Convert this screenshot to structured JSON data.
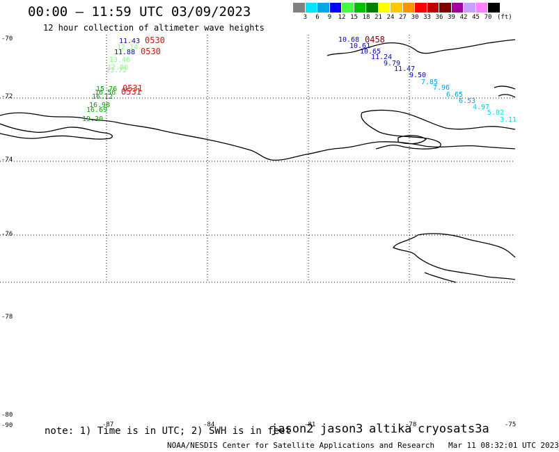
{
  "header": {
    "title": "00:00 — 11:59 UTC 03/09/2023",
    "subtitle": "12 hour collection of altimeter wave heights"
  },
  "legend": {
    "unit": "(ft)",
    "labels": [
      "3",
      "6",
      "9",
      "12",
      "15",
      "18",
      "21",
      "24",
      "27",
      "30",
      "33",
      "36",
      "39",
      "42",
      "45",
      "70"
    ],
    "colors": [
      "#808080",
      "#00e5ff",
      "#00a8e8",
      "#0000ff",
      "#40ff40",
      "#00c000",
      "#008000",
      "#ffff00",
      "#ffc800",
      "#ff9000",
      "#ff0000",
      "#c00000",
      "#800000",
      "#a000a0",
      "#c8a0ff",
      "#ff80ff",
      "#000000"
    ]
  },
  "axes": {
    "lat_labels": [
      "-70",
      "-72",
      "-74",
      "-76",
      "-78",
      "-80",
      "-90"
    ],
    "lon_labels": [
      "-87",
      "-84",
      "-81",
      "-78",
      "-75"
    ]
  },
  "observations": {
    "track_west": [
      {
        "text": "11.43",
        "color": "#0000c0"
      },
      {
        "text": "12.14",
        "color": "#80ff80"
      },
      {
        "text": "11.88",
        "color": "#0000c0"
      },
      {
        "text": "13.46",
        "color": "#80ff80"
      },
      {
        "text": "12.80",
        "color": "#80ff80"
      },
      {
        "text": "13.72",
        "color": "#80ff80"
      },
      {
        "text": "15.76",
        "color": "#00a000"
      },
      {
        "text": "16.56",
        "color": "#00a000"
      },
      {
        "text": "16.12",
        "color": "#00a000"
      },
      {
        "text": "16.98",
        "color": "#00a000"
      },
      {
        "text": "16.69",
        "color": "#00a000"
      },
      {
        "text": "19.30",
        "color": "#00a000"
      }
    ],
    "track_east": [
      {
        "text": "10.68",
        "color": "#0000c0"
      },
      {
        "text": "10.61",
        "color": "#0000c0"
      },
      {
        "text": "10.65",
        "color": "#0000c0"
      },
      {
        "text": "11.24",
        "color": "#0000c0"
      },
      {
        "text": "9.79",
        "color": "#0000c0"
      },
      {
        "text": "11.47",
        "color": "#0000c0"
      },
      {
        "text": "9.50",
        "color": "#0000c0"
      },
      {
        "text": "7.85",
        "color": "#00a0e0"
      },
      {
        "text": "7.96",
        "color": "#00a0e0"
      },
      {
        "text": "6.65",
        "color": "#00a0e0"
      },
      {
        "text": "6.53",
        "color": "#00a0e0"
      },
      {
        "text": "4.97",
        "color": "#00c8e8"
      },
      {
        "text": "5.82",
        "color": "#00e0f0"
      },
      {
        "text": "3.11",
        "color": "#00e0f0"
      }
    ],
    "times": [
      {
        "text": "0530",
        "color": "#ff0000"
      },
      {
        "text": "0530",
        "color": "#ff0000"
      },
      {
        "text": "0531",
        "color": "#ff0000"
      },
      {
        "text": "0531",
        "color": "#ff0000"
      },
      {
        "text": "0458",
        "color": "#800000"
      }
    ]
  },
  "footer": {
    "note": "note: 1) Time is in UTC; 2) SWH is in feet",
    "satellites": [
      {
        "name": "jason2",
        "color": "#0000e0"
      },
      {
        "name": "jason3",
        "color": "#00a000"
      },
      {
        "name": "altika",
        "color": "#ff9000"
      },
      {
        "name": "cryosat",
        "color": "#c00000"
      },
      {
        "name": "s3a",
        "color": "#800000"
      }
    ],
    "credit": "NOAA/NESDIS Center for Satellite Applications and Research",
    "timestamp": "Mar 11 08:32:01 UTC 2023"
  }
}
